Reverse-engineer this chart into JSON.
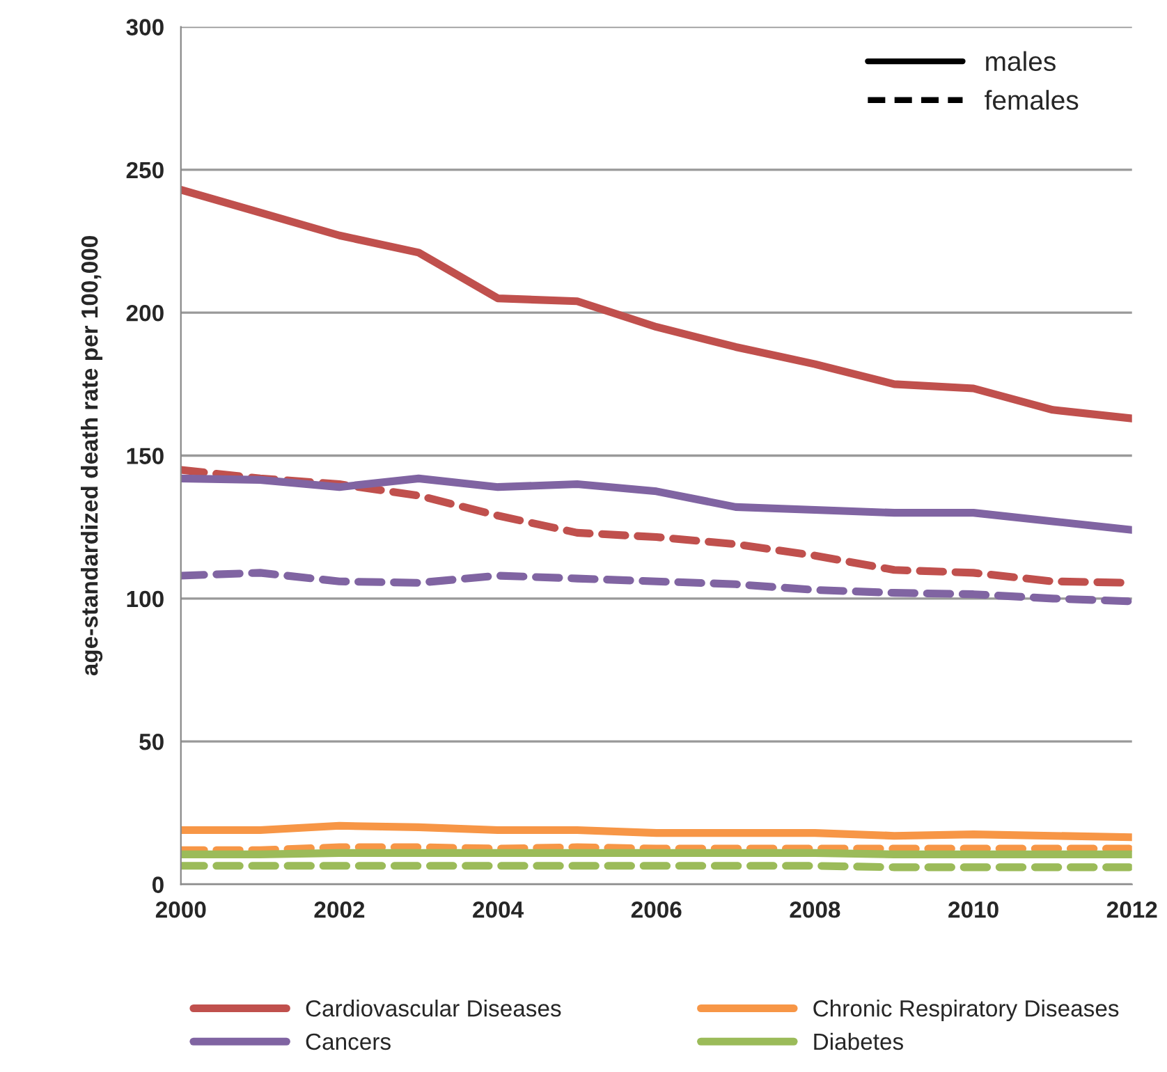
{
  "chart_data": {
    "type": "line",
    "ylabel": "age-standardized death rate per 100,000",
    "x": [
      2000,
      2001,
      2002,
      2003,
      2004,
      2005,
      2006,
      2007,
      2008,
      2009,
      2010,
      2011,
      2012
    ],
    "xlim": [
      2000,
      2012
    ],
    "xticks": [
      2000,
      2002,
      2004,
      2006,
      2008,
      2010,
      2012
    ],
    "ylim": [
      0,
      300
    ],
    "yticks": [
      0,
      50,
      100,
      150,
      200,
      250,
      300
    ],
    "grid": "y",
    "legend": "bottom",
    "line_style": "solid",
    "marker": "none",
    "annotations": [
      "males",
      "females"
    ],
    "series": [
      {
        "name": "Cardiovascular Diseases",
        "color": "#c0504d",
        "values": [
          243,
          235,
          227,
          221,
          205,
          204,
          195,
          188,
          182,
          175,
          173.5,
          166,
          163
        ]
      },
      {
        "color": "#c0504d",
        "line_style": "dashed",
        "values": [
          145,
          142,
          140,
          136,
          129,
          123,
          121.5,
          119,
          115,
          110,
          109,
          106,
          105.5
        ]
      },
      {
        "name": "Cancers",
        "color": "#8064a2",
        "values": [
          142,
          141.5,
          139,
          142,
          139,
          140,
          137.5,
          132,
          131,
          130,
          130,
          127,
          124
        ]
      },
      {
        "color": "#8064a2",
        "line_style": "dashed",
        "values": [
          108,
          109,
          106,
          105.5,
          108,
          107,
          106,
          105,
          103,
          102,
          101.5,
          100,
          99
        ]
      },
      {
        "name": "Chronic Respiratory Diseases",
        "color": "#f79646",
        "values": [
          19,
          19,
          20.5,
          20,
          19,
          19,
          18,
          18,
          18,
          17,
          17.5,
          17,
          16.5
        ]
      },
      {
        "color": "#f79646",
        "line_style": "dashed",
        "values": [
          12,
          12,
          13,
          13,
          12.5,
          13,
          12.5,
          12.5,
          12.5,
          12.5,
          12.5,
          12.5,
          12.5
        ]
      },
      {
        "name": "Diabetes",
        "color": "#9bbb59",
        "values": [
          10.5,
          10.5,
          11,
          11,
          11,
          11,
          11,
          11,
          11,
          10.5,
          10.5,
          10.5,
          10.5
        ]
      },
      {
        "color": "#9bbb59",
        "line_style": "dashed",
        "values": [
          6.5,
          6.5,
          6.5,
          6.5,
          6.5,
          6.5,
          6.5,
          6.5,
          6.5,
          6,
          6,
          6,
          6
        ]
      }
    ]
  }
}
